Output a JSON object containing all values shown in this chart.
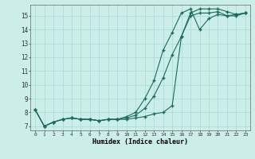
{
  "xlabel": "Humidex (Indice chaleur)",
  "bg_color": "#cceee8",
  "grid_color": "#aadddd",
  "line_color": "#1a6b5a",
  "xlim_min": -0.5,
  "xlim_max": 23.5,
  "ylim_min": 6.7,
  "ylim_max": 15.8,
  "yticks": [
    7,
    8,
    9,
    10,
    11,
    12,
    13,
    14,
    15
  ],
  "xticks": [
    0,
    1,
    2,
    3,
    4,
    5,
    6,
    7,
    8,
    9,
    10,
    11,
    12,
    13,
    14,
    15,
    16,
    17,
    18,
    19,
    20,
    21,
    22,
    23
  ],
  "line1_x": [
    0,
    1,
    2,
    3,
    4,
    5,
    6,
    7,
    8,
    9,
    10,
    11,
    12,
    13,
    14,
    15,
    16,
    17,
    18,
    19,
    20,
    21,
    22,
    23
  ],
  "line1_y": [
    8.2,
    7.0,
    7.3,
    7.5,
    7.6,
    7.5,
    7.5,
    7.4,
    7.5,
    7.5,
    7.5,
    7.6,
    7.7,
    7.9,
    8.0,
    8.5,
    13.5,
    15.0,
    15.2,
    15.2,
    15.3,
    15.0,
    15.1,
    15.2
  ],
  "line2_x": [
    0,
    1,
    2,
    3,
    4,
    5,
    6,
    7,
    8,
    9,
    10,
    11,
    12,
    13,
    14,
    15,
    16,
    17,
    18,
    19,
    20,
    21,
    22,
    23
  ],
  "line2_y": [
    8.2,
    7.0,
    7.3,
    7.5,
    7.6,
    7.5,
    7.5,
    7.4,
    7.5,
    7.5,
    7.6,
    7.8,
    8.3,
    9.2,
    10.5,
    12.2,
    13.5,
    15.2,
    15.5,
    15.5,
    15.5,
    15.3,
    15.1,
    15.2
  ],
  "line3_x": [
    0,
    1,
    2,
    3,
    4,
    5,
    6,
    7,
    8,
    9,
    10,
    11,
    12,
    13,
    14,
    15,
    16,
    17,
    18,
    19,
    20,
    21,
    22,
    23
  ],
  "line3_y": [
    8.2,
    7.0,
    7.3,
    7.5,
    7.6,
    7.5,
    7.5,
    7.4,
    7.5,
    7.5,
    7.7,
    8.0,
    9.0,
    10.3,
    12.5,
    13.8,
    15.2,
    15.5,
    14.0,
    14.8,
    15.1,
    15.0,
    15.0,
    15.2
  ]
}
